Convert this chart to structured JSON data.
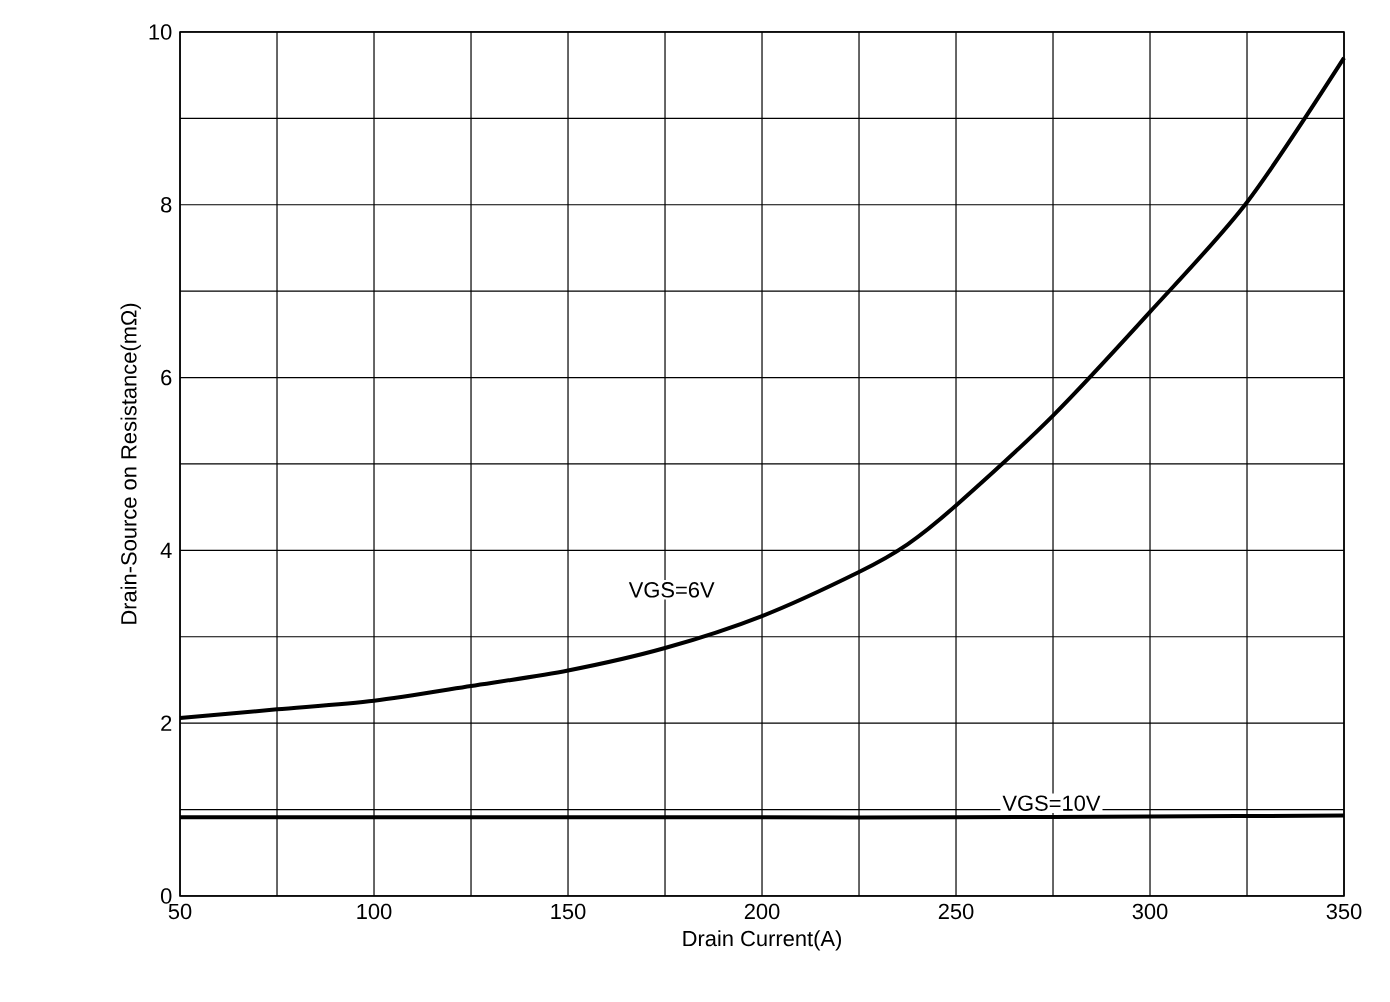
{
  "chart_data": {
    "type": "line",
    "xlabel": "Drain Current(A)",
    "ylabel": "Drain-Source on Resistance(mΩ)",
    "xlim": [
      50,
      350
    ],
    "ylim": [
      0,
      10
    ],
    "xticks": [
      50,
      {
        "value": 75,
        "label": null
      },
      100,
      {
        "value": 125,
        "label": null
      },
      150,
      {
        "value": 175,
        "label": null
      },
      200,
      {
        "value": 225,
        "label": null
      },
      250,
      {
        "value": 275,
        "label": null
      },
      300,
      {
        "value": 325,
        "label": null
      },
      350
    ],
    "yticks": [
      0,
      {
        "value": 1,
        "label": null
      },
      2,
      {
        "value": 3,
        "label": null
      },
      4,
      {
        "value": 5,
        "label": null
      },
      6,
      {
        "value": 7,
        "label": null
      },
      8,
      {
        "value": 9,
        "label": null
      },
      10
    ],
    "grid": true,
    "marker": "none",
    "line_style": "solid",
    "series": [
      {
        "name": "VGS=6V",
        "color": "#000000",
        "x": [
          50,
          75,
          100,
          125,
          150,
          175,
          200,
          225,
          237.5,
          250,
          275,
          300,
          325,
          350
        ],
        "values": [
          2.06,
          2.16,
          2.26,
          2.43,
          2.61,
          2.87,
          3.24,
          3.75,
          4.07,
          4.52,
          5.56,
          6.76,
          8.03,
          9.7
        ]
      },
      {
        "name": "VGS=10V",
        "color": "#000000",
        "x": [
          50,
          100,
          150,
          200,
          250,
          300,
          350
        ],
        "values": [
          0.91,
          0.91,
          0.91,
          0.91,
          0.91,
          0.92,
          0.93
        ]
      }
    ]
  }
}
